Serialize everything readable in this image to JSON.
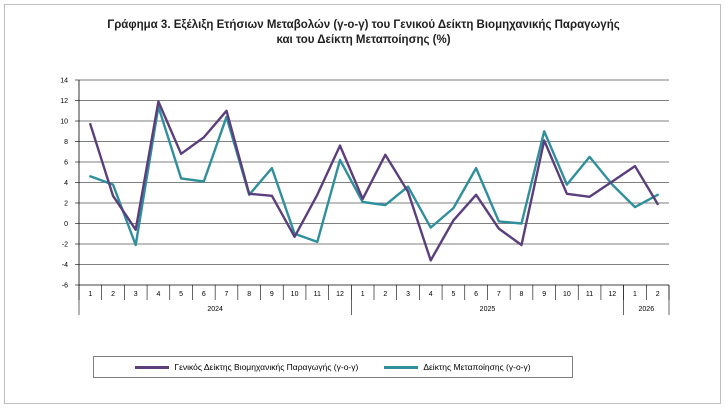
{
  "chart_data": {
    "type": "line",
    "title_line1": "Γράφημα 3. Εξέλιξη Ετήσιων Μεταβολών (γ-ο-γ) του Γενικού Δείκτη Βιομηχανικής Παραγωγής",
    "title_line2": "και του Δείκτη Μεταποίησης (%)",
    "ylim": [
      -6,
      14
    ],
    "yticks": [
      "-6",
      "-4",
      "-2",
      "0",
      "2",
      "4",
      "6",
      "8",
      "10",
      "12",
      "14"
    ],
    "categories": [
      "1",
      "2",
      "3",
      "4",
      "5",
      "6",
      "7",
      "8",
      "9",
      "10",
      "11",
      "12",
      "1",
      "2",
      "3",
      "4",
      "5",
      "6",
      "7",
      "8",
      "9",
      "10",
      "11",
      "12",
      "1",
      "2"
    ],
    "years": [
      {
        "label": "2024",
        "count": 12
      },
      {
        "label": "2025",
        "count": 12
      },
      {
        "label": "2026",
        "count": 2
      }
    ],
    "series": [
      {
        "name": "Γενικός Δείκτης Βιομηχανικής Παραγωγής (γ-ο-γ)",
        "color": "#5b3f7d",
        "values": [
          9.7,
          2.7,
          -0.6,
          11.9,
          6.8,
          8.4,
          11.0,
          2.9,
          2.7,
          -1.3,
          2.8,
          7.6,
          2.4,
          6.7,
          3.1,
          -3.6,
          0.3,
          2.8,
          -0.5,
          -2.1,
          8.1,
          2.9,
          2.6,
          4.1,
          5.6,
          1.9
        ]
      },
      {
        "name": "Δείκτης Μεταποίησης (γ-ο-γ)",
        "color": "#2f8f9d",
        "values": [
          4.6,
          3.8,
          -2.1,
          11.4,
          4.4,
          4.1,
          10.4,
          2.8,
          5.4,
          -1.0,
          -1.8,
          6.2,
          2.1,
          1.8,
          3.6,
          -0.4,
          1.5,
          5.4,
          0.2,
          0.0,
          9.0,
          3.8,
          6.5,
          3.8,
          1.6,
          2.8
        ]
      }
    ]
  }
}
